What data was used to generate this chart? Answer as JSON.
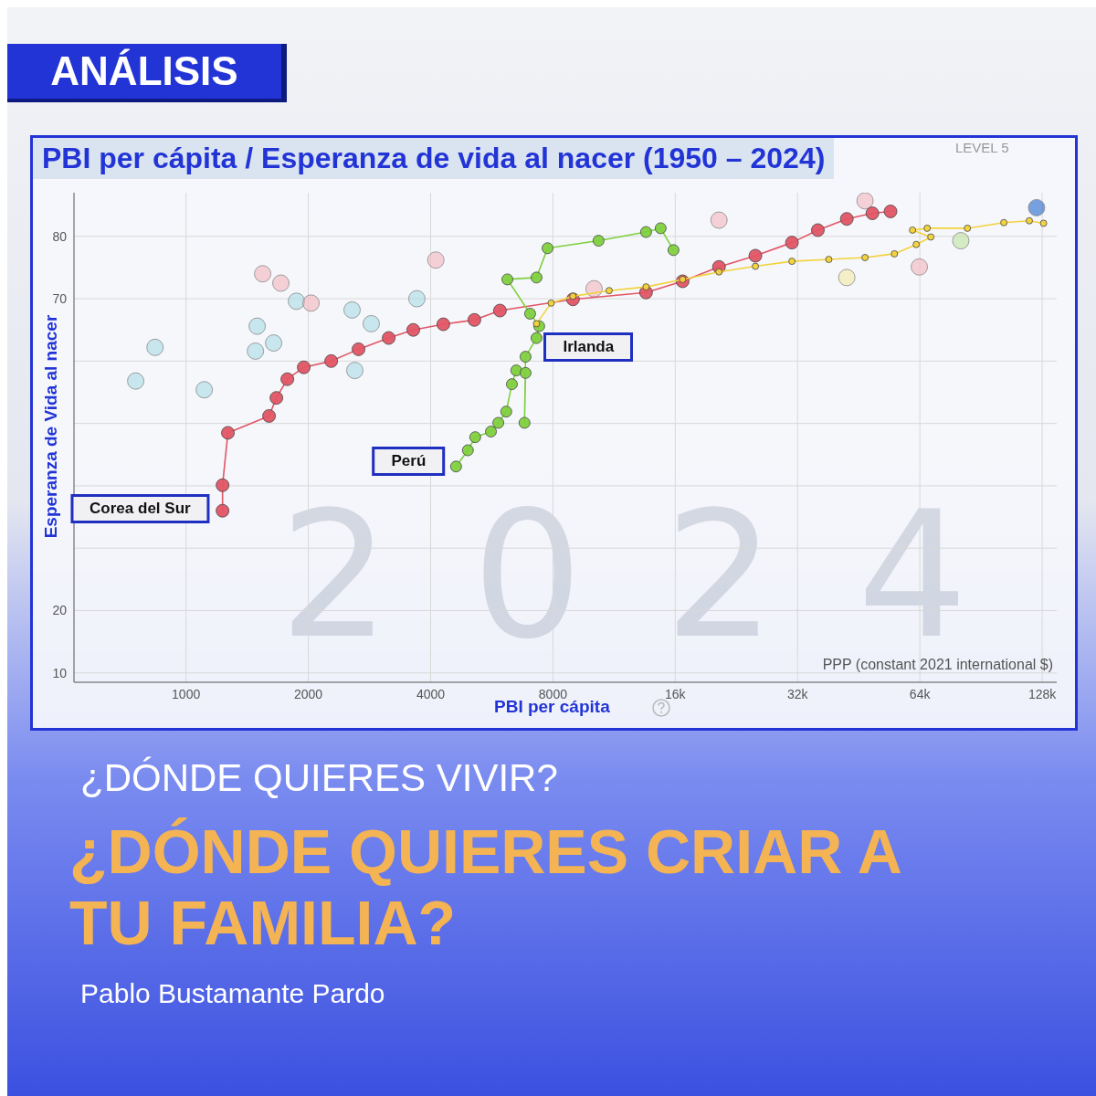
{
  "chart_data": {
    "type": "scatter",
    "title": "PBI per cápita / Esperanza de vida al nacer (1950 – 2024)",
    "xlabel": "PBI per cápita",
    "ylabel": "Esperanza de Vida al nacer",
    "log": "x",
    "grid": true,
    "legend": false,
    "marker": "circle",
    "line_style": "solid",
    "xlim": [
      530,
      139000
    ],
    "xticks": [
      1000,
      2000,
      4000,
      8000,
      {
        "value": 16000,
        "label": "16k"
      },
      {
        "value": 32000,
        "label": "32k"
      },
      {
        "value": 64000,
        "label": "64k"
      },
      {
        "value": 128000,
        "label": "128k"
      }
    ],
    "ylim": [
      8.5,
      87
    ],
    "yticks": [
      10,
      20,
      {
        "value": 30,
        "label": null
      },
      {
        "value": 40,
        "label": null
      },
      {
        "value": 50,
        "label": null
      },
      {
        "value": 60,
        "label": null
      },
      70,
      80
    ],
    "annotations": [
      "ANÁLISIS",
      "¿DÓNDE QUIERES VIVIR?",
      "¿DÓNDE QUIERES CRIAR A TU FAMILIA?",
      "Pablo Bustamante Pardo",
      "PPP (constant 2021 international $)",
      "LEVEL 5",
      "2024",
      {
        "text": "Corea del Sur",
        "x": 1230,
        "y": 36
      },
      {
        "text": "Perú",
        "x": 4620,
        "y": 43.1
      },
      {
        "text": "Irlanda",
        "x": 7290,
        "y": 66
      }
    ],
    "series": [
      {
        "type": "scatter",
        "x": [
          752,
          839,
          1109,
          1544,
          1712,
          1870,
          2031,
          1497,
          1482,
          1643,
          4120,
          3701,
          2563,
          2857,
          2603,
          20500,
          80700,
          42300,
          63800,
          124000,
          46900,
          10100
        ],
        "values": [
          56.8,
          62.2,
          55.4,
          74,
          72.5,
          69.6,
          69.3,
          65.6,
          61.6,
          62.9,
          76.2,
          70,
          68.2,
          66,
          58.5,
          82.6,
          79.3,
          73.4,
          75.1,
          84.6,
          85.7,
          71.6
        ],
        "colors": [
          "#a9dbe6",
          "#a9dbe6",
          "#a9dbe6",
          "#f4b6be",
          "#f4b6be",
          "#a9dbe6",
          "#f4b6be",
          "#a9dbe6",
          "#a9dbe6",
          "#a9dbe6",
          "#f4b6be",
          "#a9dbe6",
          "#a9dbe6",
          "#a9dbe6",
          "#a9dbe6",
          "#f4b6be",
          "#bfe3a0",
          "#f3e9a3",
          "#f4b6be",
          "#2266cc",
          "#f4b6be",
          "#f4b6be"
        ]
      },
      {
        "type": "line",
        "color": "#e25565",
        "x": [
          1230,
          1230,
          1268,
          1601,
          1669,
          1776,
          1949,
          2277,
          2658,
          3154,
          3626,
          4299,
          5126,
          5925,
          8962,
          13560,
          16680,
          20500,
          25200,
          31000,
          35900,
          42300,
          48900,
          54200
        ],
        "values": [
          36,
          40.1,
          48.5,
          51.2,
          54.1,
          57.1,
          59,
          60,
          61.9,
          63.7,
          65,
          65.9,
          66.6,
          68.1,
          69.9,
          71,
          72.8,
          75.1,
          76.9,
          79,
          81,
          82.8,
          83.7,
          84
        ]
      },
      {
        "type": "line",
        "color": "#7fd03f",
        "x": [
          4620,
          4940,
          5150,
          5630,
          5870,
          6140,
          6340,
          6500,
          6850,
          6810,
          6850,
          7290,
          7400,
          7030,
          6180,
          7290,
          7760,
          10360,
          13560,
          14730,
          15840
        ],
        "values": [
          43.1,
          45.7,
          47.8,
          48.7,
          50.1,
          51.9,
          56.3,
          58.5,
          58.1,
          50.1,
          60.7,
          63.7,
          65.6,
          67.6,
          73.1,
          73.4,
          78.1,
          79.3,
          80.7,
          81.3,
          77.8
        ]
      },
      {
        "type": "line",
        "color": "#f2d23c",
        "x": [
          7290,
          7920,
          8960,
          11000,
          13560,
          16680,
          20500,
          25200,
          31000,
          38200,
          46900,
          55400,
          62700,
          68100,
          61400,
          66700,
          83800,
          103000,
          119000,
          129000
        ],
        "values": [
          66,
          69.3,
          70.4,
          71.3,
          71.9,
          73.1,
          74.3,
          75.2,
          76,
          76.3,
          76.6,
          77.2,
          78.7,
          79.9,
          81,
          81.3,
          81.3,
          82.2,
          82.5,
          82.1
        ]
      }
    ]
  }
}
